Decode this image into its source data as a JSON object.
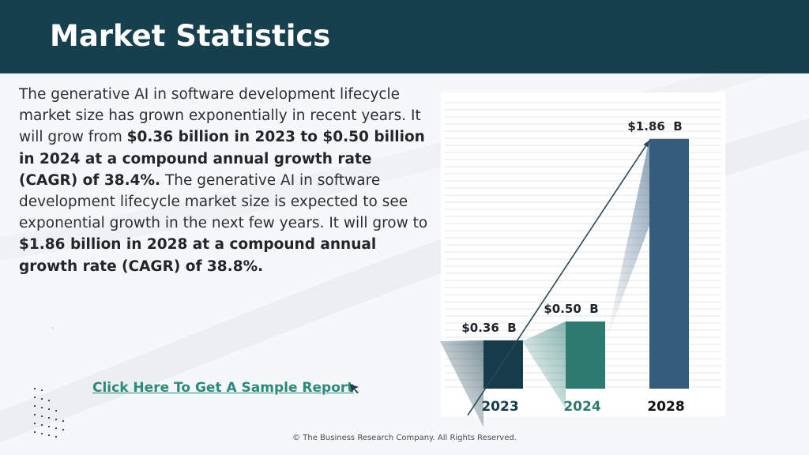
{
  "header": {
    "title": "Market Statistics"
  },
  "body": {
    "segments": [
      {
        "text": "The generative AI in software development lifecycle market size has grown exponentially in recent years. It will grow from ",
        "bold": false
      },
      {
        "text": "$0.36 billion in 2023 to $0.50 billion in 2024 at a compound annual growth rate (CAGR) of 38.4%.",
        "bold": true
      },
      {
        "text": "  The generative AI in software development lifecycle market size is expected to see exponential growth in the next few years. It will grow to ",
        "bold": false
      },
      {
        "text": "$1.86 billion in 2028 at a compound annual growth rate (CAGR) of 38.8%.",
        "bold": true
      }
    ]
  },
  "cta": {
    "label": "Click Here To Get A Sample Report"
  },
  "footer": {
    "copyright": "© The Business Research Company. All Rights Reserved."
  },
  "chart_data": {
    "type": "bar",
    "categories": [
      "2023",
      "2024",
      "2028"
    ],
    "values": [
      0.36,
      0.5,
      1.86
    ],
    "data_labels": [
      "$0.36  B",
      "$0.50  B",
      "$1.86  B"
    ],
    "bar_colors": [
      "#163c4b",
      "#2c7a70",
      "#355b7d"
    ],
    "category_label_colors": [
      "#163c4b",
      "#2c7a70",
      "#111111"
    ],
    "title": "",
    "xlabel": "",
    "ylabel": "",
    "ylim": [
      0,
      2.0
    ],
    "grid": true,
    "trend_arrow": true,
    "legend": "none"
  }
}
